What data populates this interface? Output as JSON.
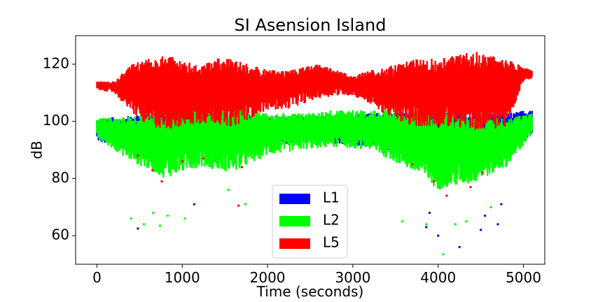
{
  "chart_data": {
    "type": "scatter",
    "title": "SI Asension Island",
    "xlabel": "Time (seconds)",
    "ylabel": "dB",
    "xlim": [
      -250,
      5250
    ],
    "ylim": [
      50,
      130
    ],
    "xticks": [
      0,
      1000,
      2000,
      3000,
      4000,
      5000
    ],
    "yticks": [
      60,
      80,
      100,
      120
    ],
    "grid": false,
    "legend": {
      "placement": "lower-center"
    },
    "series": [
      {
        "name": "L1",
        "color": "#0000ff",
        "band": {
          "x": [
            0,
            400,
            800,
            1200,
            1600,
            2000,
            2400,
            2800,
            3200,
            3600,
            4000,
            4400,
            4800,
            5100
          ],
          "lower": [
            93,
            89,
            88,
            89,
            89,
            91,
            93,
            92,
            91,
            88,
            86,
            86,
            88,
            95
          ],
          "upper": [
            101,
            102,
            103,
            104,
            103,
            102,
            102,
            102,
            103,
            103,
            103,
            103,
            103,
            104
          ]
        },
        "outliers": [
          [
            480,
            62.5
          ],
          [
            1140,
            71
          ],
          [
            3860,
            63
          ],
          [
            3900,
            68
          ],
          [
            4000,
            60
          ],
          [
            4250,
            56
          ],
          [
            4500,
            62
          ],
          [
            4550,
            67
          ],
          [
            4700,
            64
          ],
          [
            4740,
            71
          ]
        ]
      },
      {
        "name": "L2",
        "color": "#00ff00",
        "band": {
          "x": [
            0,
            400,
            800,
            1200,
            1600,
            2000,
            2400,
            2800,
            3200,
            3600,
            4000,
            4400,
            4800,
            5100
          ],
          "lower": [
            94,
            86,
            80,
            84,
            82,
            88,
            90,
            91,
            90,
            84,
            76,
            78,
            84,
            95
          ],
          "upper": [
            101,
            102,
            104,
            105,
            105,
            103,
            103,
            104,
            104,
            104,
            103,
            102,
            101,
            103
          ]
        },
        "outliers": [
          [
            400,
            66
          ],
          [
            550,
            64
          ],
          [
            660,
            68
          ],
          [
            740,
            63.5
          ],
          [
            830,
            67
          ],
          [
            1030,
            66
          ],
          [
            1540,
            76
          ],
          [
            1740,
            71
          ],
          [
            3580,
            65
          ],
          [
            3860,
            64
          ],
          [
            4060,
            53.5
          ],
          [
            4200,
            64
          ],
          [
            4330,
            65
          ],
          [
            4620,
            70
          ]
        ]
      },
      {
        "name": "L5",
        "color": "#ff0000",
        "band": {
          "x": [
            0,
            200,
            400,
            600,
            800,
            1000,
            1200,
            1400,
            1600,
            1800,
            2000,
            2200,
            2400,
            2600,
            2800,
            3000,
            3200,
            3400,
            3600,
            3800,
            4000,
            4200,
            4400,
            4600,
            4800,
            5000,
            5100
          ],
          "lower": [
            111,
            110,
            103,
            98,
            97,
            98,
            99,
            99,
            98,
            101,
            104,
            104,
            106,
            108,
            109,
            109,
            106,
            102,
            99,
            98,
            98,
            98,
            97,
            97,
            98,
            114,
            115
          ],
          "upper": [
            114,
            114,
            120,
            122,
            124,
            121,
            120,
            122,
            122,
            120,
            118,
            118,
            119,
            120,
            118,
            116,
            118,
            119,
            121,
            122,
            122,
            123,
            125,
            123,
            122,
            119,
            118
          ]
        },
        "outliers": [
          [
            480,
            88
          ],
          [
            650,
            83
          ],
          [
            760,
            79
          ],
          [
            1000,
            86
          ],
          [
            1250,
            87
          ],
          [
            1660,
            70.5
          ],
          [
            1700,
            84
          ],
          [
            3700,
            85
          ],
          [
            3950,
            79
          ],
          [
            4100,
            74
          ],
          [
            4380,
            77
          ],
          [
            4520,
            82
          ]
        ]
      }
    ]
  }
}
